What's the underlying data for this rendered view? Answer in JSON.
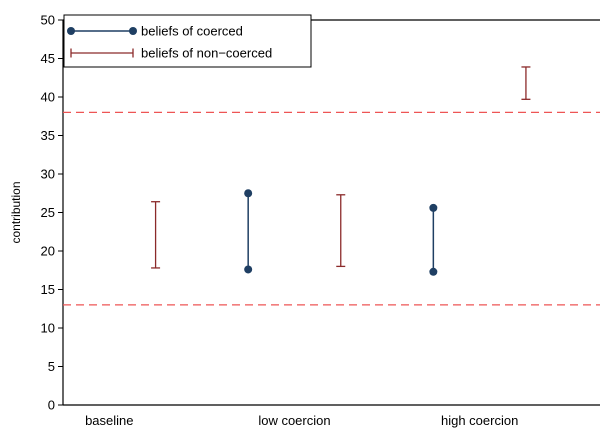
{
  "chart_data": {
    "type": "range",
    "title": "",
    "xlabel": "",
    "ylabel": "contribution",
    "ylim": [
      0,
      50
    ],
    "yticks": [
      0,
      5,
      10,
      15,
      20,
      25,
      30,
      35,
      40,
      45,
      50
    ],
    "categories": [
      "baseline",
      "low coercion",
      "high coercion"
    ],
    "series": [
      {
        "name": "beliefs of coerced",
        "style": "dot-range",
        "color": "#1f3f63",
        "ranges": [
          {
            "x": 1.75,
            "low": 17.6,
            "high": 27.5
          },
          {
            "x": 2.75,
            "low": 17.3,
            "high": 25.6
          }
        ]
      },
      {
        "name": "beliefs of non−coerced",
        "style": "capped-range",
        "color": "#8b2a2a",
        "ranges": [
          {
            "x": 1.25,
            "low": 17.8,
            "high": 26.4
          },
          {
            "x": 2.25,
            "low": 18.0,
            "high": 27.3
          },
          {
            "x": 3.25,
            "low": 39.7,
            "high": 43.9
          }
        ]
      }
    ],
    "reference_lines": [
      {
        "y": 38,
        "color": "#ee5555",
        "style": "dashed"
      },
      {
        "y": 13,
        "color": "#ee5555",
        "style": "dashed"
      }
    ],
    "legend_position": "top-left",
    "grid": false
  }
}
